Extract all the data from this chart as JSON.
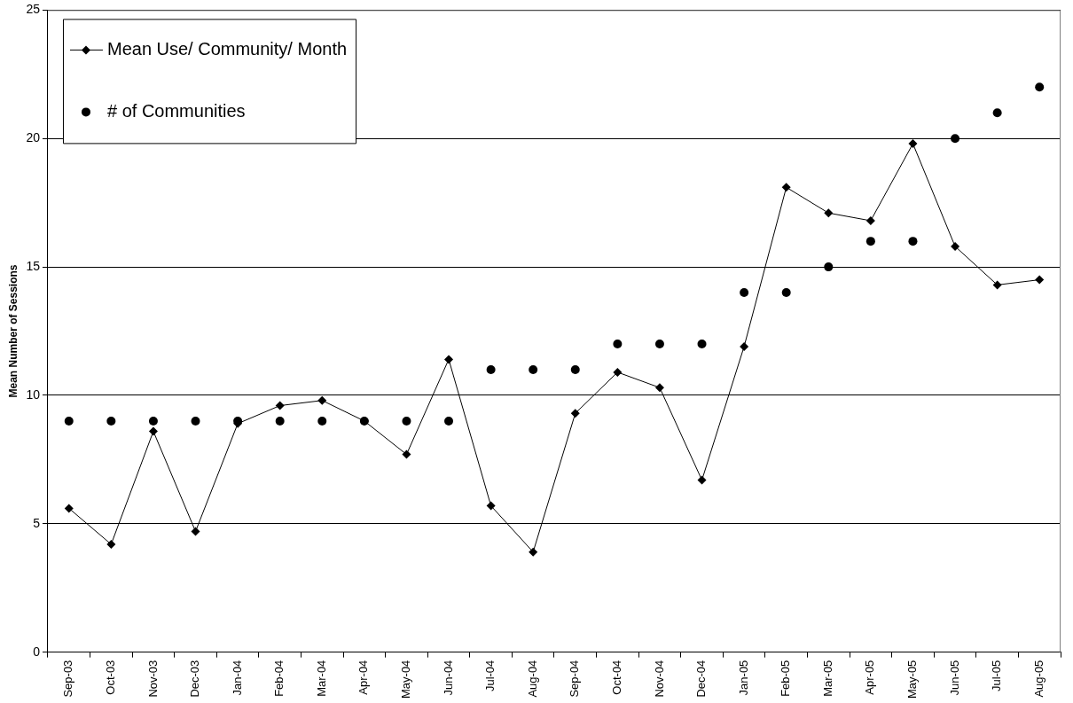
{
  "chart_data": {
    "type": "line",
    "ylabel": "Mean Number of Sessions",
    "categories": [
      "Sep-03",
      "Oct-03",
      "Nov-03",
      "Dec-03",
      "Jan-04",
      "Feb-04",
      "Mar-04",
      "Apr-04",
      "May-04",
      "Jun-04",
      "Jul-04",
      "Aug-04",
      "Sep-04",
      "Oct-04",
      "Nov-04",
      "Dec-04",
      "Jan-05",
      "Feb-05",
      "Mar-05",
      "Apr-05",
      "May-05",
      "Jun-05",
      "Jul-05",
      "Aug-05"
    ],
    "series": [
      {
        "name": "Mean Use/ Community/ Month",
        "type": "line",
        "color": "#000000",
        "marker": "diamond",
        "line_style": "solid",
        "values": [
          5.6,
          4.2,
          8.6,
          4.7,
          8.9,
          9.6,
          9.8,
          9,
          7.7,
          11.4,
          5.7,
          3.9,
          9.3,
          10.9,
          10.3,
          6.7,
          11.9,
          18.1,
          17.1,
          16.8,
          19.8,
          15.8,
          14.3,
          14.5
        ]
      },
      {
        "name": "# of Communities",
        "type": "scatter",
        "color": "#000000",
        "marker": "circle",
        "values": [
          9,
          9,
          9,
          9,
          9,
          9,
          9,
          9,
          9,
          9,
          11,
          11,
          11,
          12,
          12,
          12,
          14,
          14,
          15,
          16,
          16,
          20,
          21,
          22
        ]
      }
    ],
    "ylim": [
      0,
      25
    ],
    "yticks": [
      0,
      5,
      10,
      15,
      20,
      25
    ],
    "grid": "y",
    "legend": "top left"
  }
}
